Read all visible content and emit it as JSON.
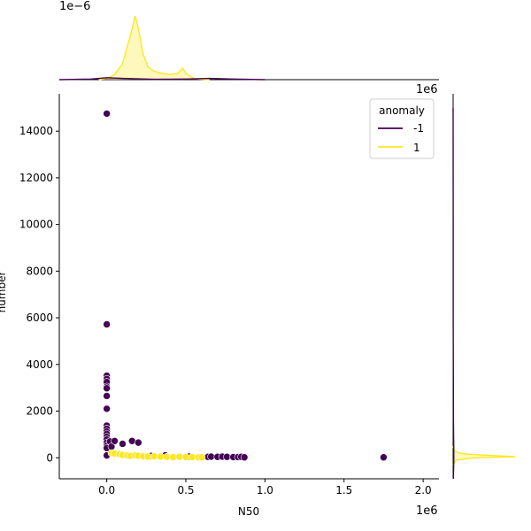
{
  "chart_data": {
    "type": "scatter",
    "xlabel": "N50",
    "ylabel": "number",
    "x_offset_label": "1e6",
    "top_marginal_offset_label": "1e−6",
    "right_marginal_offset_label": "1e6",
    "xlim": [
      -300000,
      2100000
    ],
    "ylim": [
      -900,
      15600
    ],
    "x_ticks": [
      0,
      500000,
      1000000,
      1500000,
      2000000
    ],
    "x_tick_labels": [
      "0.0",
      "0.5",
      "1.0",
      "1.5",
      "2.0"
    ],
    "y_ticks": [
      0,
      2000,
      4000,
      6000,
      8000,
      10000,
      12000,
      14000
    ],
    "y_tick_labels": [
      "0",
      "2000",
      "4000",
      "6000",
      "8000",
      "10000",
      "12000",
      "14000"
    ],
    "legend": {
      "title": "anomaly",
      "placement": "top-right",
      "entries": [
        {
          "label": "-1",
          "color": "#440154"
        },
        {
          "label": "1",
          "color": "#fde725"
        }
      ]
    },
    "series": [
      {
        "name": "-1",
        "color": "#440154",
        "points": [
          [
            0,
            14750
          ],
          [
            0,
            5720
          ],
          [
            0,
            3520
          ],
          [
            0,
            3380
          ],
          [
            0,
            3250
          ],
          [
            0,
            3050
          ],
          [
            0,
            2980
          ],
          [
            0,
            2650
          ],
          [
            0,
            2100
          ],
          [
            0,
            1380
          ],
          [
            0,
            1250
          ],
          [
            0,
            1120
          ],
          [
            0,
            1020
          ],
          [
            0,
            900
          ],
          [
            0,
            780
          ],
          [
            0,
            650
          ],
          [
            0,
            520
          ],
          [
            0,
            420
          ],
          [
            0,
            100
          ],
          [
            20000,
            700
          ],
          [
            30000,
            480
          ],
          [
            50000,
            720
          ],
          [
            100000,
            600
          ],
          [
            160000,
            720
          ],
          [
            200000,
            650
          ],
          [
            280000,
            80
          ],
          [
            370000,
            100
          ],
          [
            520000,
            50
          ],
          [
            640000,
            40
          ],
          [
            660000,
            50
          ],
          [
            700000,
            40
          ],
          [
            730000,
            50
          ],
          [
            760000,
            40
          ],
          [
            800000,
            30
          ],
          [
            830000,
            30
          ],
          [
            850000,
            40
          ],
          [
            870000,
            20
          ],
          [
            1750000,
            20
          ]
        ]
      },
      {
        "name": "1",
        "color": "#fde725",
        "points": [
          [
            30000,
            200
          ],
          [
            50000,
            180
          ],
          [
            80000,
            150
          ],
          [
            100000,
            120
          ],
          [
            130000,
            100
          ],
          [
            150000,
            80
          ],
          [
            180000,
            100
          ],
          [
            200000,
            90
          ],
          [
            230000,
            60
          ],
          [
            260000,
            50
          ],
          [
            300000,
            60
          ],
          [
            340000,
            50
          ],
          [
            380000,
            40
          ],
          [
            420000,
            30
          ],
          [
            460000,
            40
          ],
          [
            500000,
            30
          ],
          [
            540000,
            30
          ],
          [
            580000,
            20
          ],
          [
            600000,
            20
          ]
        ]
      }
    ],
    "top_marginal": {
      "series": [
        {
          "name": "1",
          "color": "#fde725",
          "fill": "#fde725",
          "x": [
            -50000,
            0,
            50000,
            100000,
            150000,
            180000,
            200000,
            230000,
            260000,
            300000,
            350000,
            400000,
            450000,
            480000,
            500000,
            550000,
            600000,
            650000
          ],
          "density": [
            0,
            0.02,
            0.08,
            0.25,
            0.7,
            1.0,
            0.8,
            0.4,
            0.2,
            0.13,
            0.1,
            0.08,
            0.1,
            0.18,
            0.1,
            0.02,
            0.005,
            0
          ]
        },
        {
          "name": "-1",
          "color": "#440154",
          "x": [
            -300000,
            -100000,
            0,
            100000,
            300000,
            500000,
            650000,
            800000,
            1000000
          ],
          "density": [
            0,
            0.01,
            0.03,
            0.02,
            0.005,
            0.01,
            0.02,
            0.01,
            0
          ]
        }
      ]
    },
    "right_marginal": {
      "series": [
        {
          "name": "1",
          "color": "#fde725",
          "fill": "#fde725",
          "y": [
            -300,
            -100,
            0,
            50,
            100,
            150,
            200,
            300,
            500
          ],
          "density": [
            0,
            0.05,
            0.35,
            1.0,
            0.6,
            0.25,
            0.1,
            0.02,
            0
          ]
        },
        {
          "name": "-1",
          "color": "#440154",
          "y": [
            -900,
            0,
            500,
            1500,
            3000,
            6000,
            10000,
            15000
          ],
          "density": [
            0.004,
            0.012,
            0.01,
            0.006,
            0.004,
            0.002,
            0.001,
            0.0005
          ]
        }
      ]
    }
  }
}
